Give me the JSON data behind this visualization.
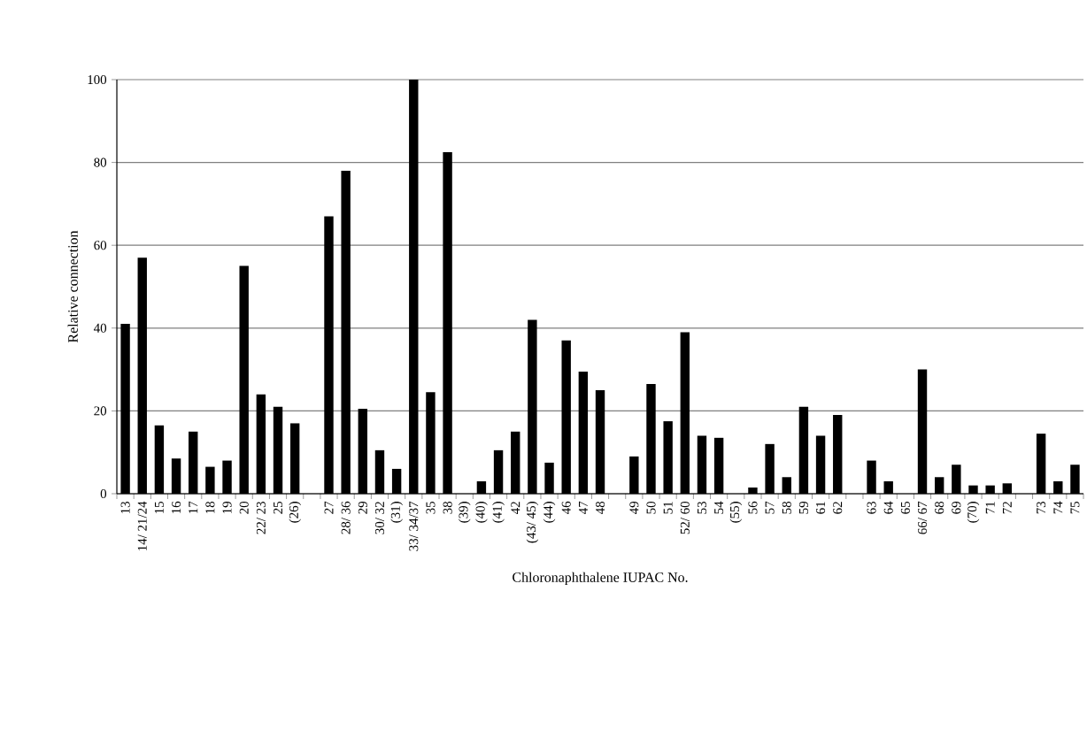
{
  "chart_data": {
    "type": "bar",
    "xlabel": "Chloronaphthalene IUPAC No.",
    "ylabel": "Relative connection",
    "categories": [
      "13",
      "14/ 21/24",
      "15",
      "16",
      "17",
      "18",
      "19",
      "20",
      "22/ 23",
      "25",
      "(26)",
      null,
      "27",
      "28/ 36",
      "29",
      "30/ 32",
      "(31)",
      "33/ 34/37",
      "35",
      "38",
      "(39)",
      "(40)",
      "(41)",
      "42",
      "(43/ 45)",
      "(44)",
      "46",
      "47",
      "48",
      null,
      "49",
      "50",
      "51",
      "52/ 60",
      "53",
      "54",
      "(55)",
      "56",
      "57",
      "58",
      "59",
      "61",
      "62",
      null,
      "63",
      "64",
      "65",
      "66/ 67",
      "68",
      "69",
      "(70)",
      "71",
      "72",
      null,
      "73",
      "74",
      "75"
    ],
    "values": [
      41,
      57,
      16.5,
      8.5,
      15,
      6.5,
      8,
      55,
      24,
      21,
      17,
      null,
      67,
      78,
      20.5,
      10.5,
      6,
      100,
      24.5,
      82.5,
      0,
      3,
      10.5,
      15,
      42,
      7.5,
      37,
      29.5,
      25,
      null,
      9,
      26.5,
      17.5,
      39,
      14,
      13.5,
      0,
      1.5,
      12,
      4,
      21,
      14,
      19,
      null,
      8,
      3,
      0,
      30,
      4,
      7,
      2,
      2,
      2.5,
      null,
      14.5,
      3,
      7
    ],
    "color": "#000000",
    "ylim": [
      0,
      100
    ],
    "yticks": [
      0,
      20,
      40,
      60,
      80,
      100
    ],
    "grid": "y"
  }
}
